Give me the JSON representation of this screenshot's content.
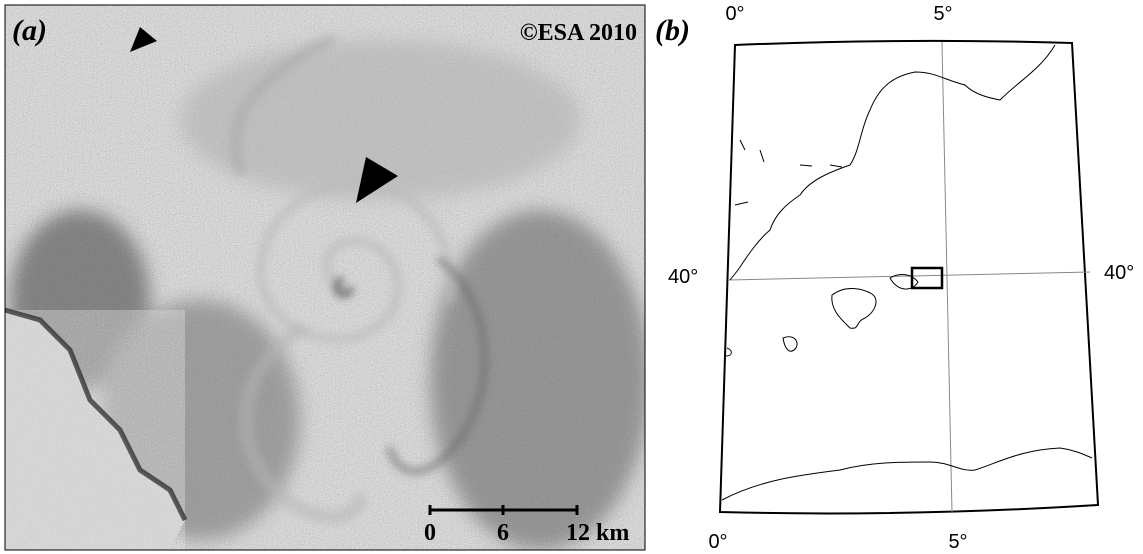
{
  "panel_a": {
    "label": "(a)",
    "copyright": "©ESA 2010",
    "scale_bar": {
      "ticks": [
        "0",
        "6",
        "12 km"
      ]
    }
  },
  "panel_b": {
    "label": "(b)",
    "top_labels": [
      "0°",
      "5°"
    ],
    "left_label": "40°",
    "right_label": "40°",
    "bottom_labels": [
      "0°",
      "5°"
    ]
  }
}
